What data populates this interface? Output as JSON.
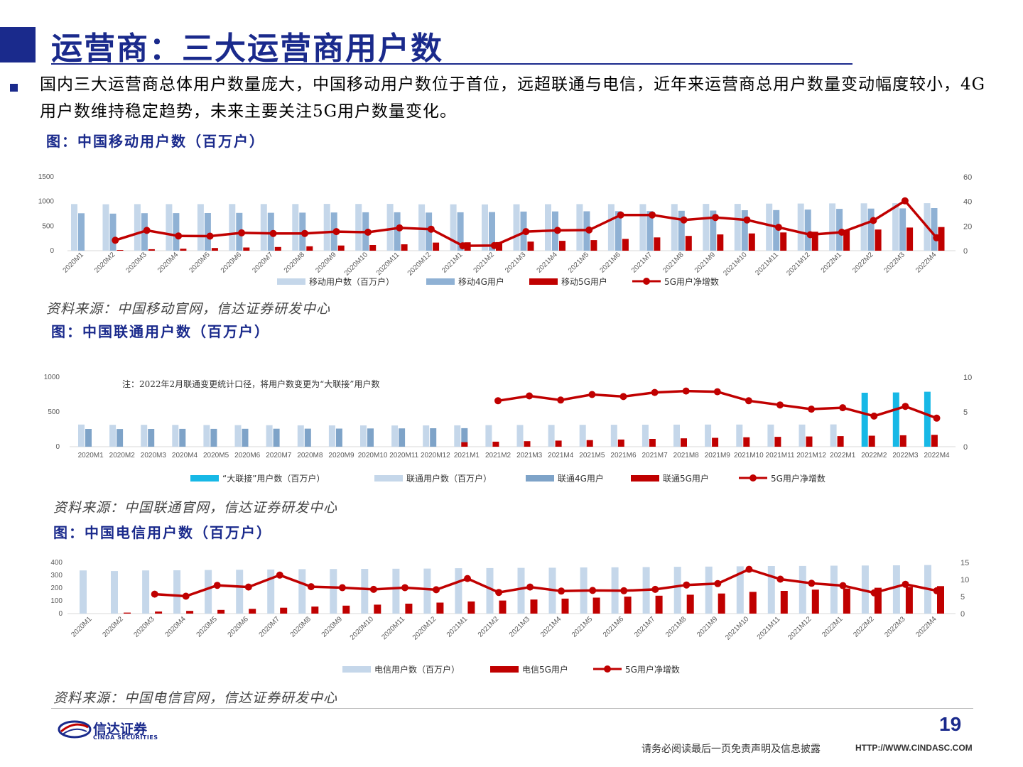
{
  "page": {
    "title": "运营商：三大运营商用户数",
    "intro": "国内三大运营商总体用户数量庞大，中国移动用户数位于首位，远超联通与电信，近年来运营商总用户数量变动幅度较小，4G用户数维持稳定趋势，未来主要关注5G用户数量变化。",
    "page_number": "19",
    "disclaimer": "请务必阅读最后一页免责声明及信息披露",
    "url": "HTTP://WWW.CINDASC.COM",
    "logo_cn": "信达证券",
    "logo_en": "CINDA SECURITIES",
    "colors": {
      "brand": "#1a2a8c",
      "light_bar": "#c5d7ea",
      "mid_bar": "#8fb1d4",
      "dark_bar": "#7ea3c8",
      "red": "#c00000",
      "cyan": "#17b8e6"
    }
  },
  "chart_data": [
    {
      "type": "bar",
      "title": "图：中国移动用户数（百万户）",
      "source": "资料来源：中国移动官网，信达证券研发中心",
      "categories": [
        "2020M1",
        "2020M2",
        "2020M3",
        "2020M4",
        "2020M5",
        "2020M6",
        "2020M7",
        "2020M8",
        "2020M9",
        "2020M10",
        "2020M11",
        "2020M12",
        "2021M1",
        "2021M2",
        "2021M3",
        "2021M4",
        "2021M5",
        "2021M6",
        "2021M7",
        "2021M8",
        "2021M9",
        "2021M10",
        "2021M11",
        "2021M12",
        "2022M1",
        "2022M2",
        "2022M3",
        "2022M4"
      ],
      "ylim_left": [
        0,
        1500
      ],
      "yticks_left": [
        "0",
        "500",
        "1000",
        "1500"
      ],
      "ylim_right": [
        0,
        60
      ],
      "yticks_right": [
        "0",
        "20",
        "40",
        "60"
      ],
      "series": [
        {
          "name": "移动用户数（百万户）",
          "kind": "bar",
          "axis": "left",
          "color": "#c5d7ea",
          "values": [
            948,
            943,
            946,
            946,
            946,
            947,
            948,
            948,
            950,
            949,
            950,
            942,
            942,
            940,
            943,
            945,
            946,
            946,
            946,
            947,
            950,
            951,
            956,
            957,
            961,
            962,
            965,
            965
          ]
        },
        {
          "name": "移动4G用户",
          "kind": "bar",
          "axis": "left",
          "color": "#8fb1d4",
          "values": [
            760,
            753,
            762,
            763,
            765,
            768,
            770,
            773,
            776,
            780,
            780,
            775,
            780,
            785,
            795,
            797,
            800,
            803,
            805,
            810,
            815,
            822,
            825,
            835,
            850,
            855,
            860,
            865
          ]
        },
        {
          "name": "移动5G用户",
          "kind": "bar",
          "axis": "left",
          "color": "#c00000",
          "values": [
            0,
            15,
            30,
            40,
            55,
            65,
            75,
            90,
            105,
            115,
            130,
            165,
            170,
            175,
            185,
            200,
            215,
            240,
            270,
            300,
            330,
            350,
            370,
            385,
            410,
            430,
            470,
            480
          ]
        },
        {
          "name": "5G用户净增数",
          "kind": "line",
          "axis": "right",
          "color": "#c00000",
          "values": [
            null,
            8.5,
            16.5,
            12,
            11.8,
            14.5,
            14,
            14,
            15.5,
            15,
            18.5,
            17.5,
            4,
            4.2,
            15.5,
            16.5,
            16.8,
            29,
            29,
            25,
            27,
            25,
            19,
            13,
            15,
            24.5,
            40.5,
            10.5
          ]
        }
      ],
      "cat_rotate": true
    },
    {
      "type": "bar",
      "title": "图：中国联通用户数（百万户）",
      "source": "资料来源：中国联通官网，信达证券研发中心",
      "annotation": "注：2022年2月联通变更统计口径，将用户数变更为“大联接”用户数",
      "categories": [
        "2020M1",
        "2020M2",
        "2020M3",
        "2020M4",
        "2020M5",
        "2020M6",
        "2020M7",
        "2020M8",
        "2020M9",
        "2020M10",
        "2020M11",
        "2020M12",
        "2021M1",
        "2021M2",
        "2021M3",
        "2021M4",
        "2021M5",
        "2021M6",
        "2021M7",
        "2021M8",
        "2021M9",
        "2021M10",
        "2021M11",
        "2021M12",
        "2022M1",
        "2022M2",
        "2022M3",
        "2022M4"
      ],
      "ylim_left": [
        0,
        1000
      ],
      "yticks_left": [
        "0",
        "500",
        "1000"
      ],
      "ylim_right": [
        0,
        10
      ],
      "yticks_right": [
        "0",
        "5",
        "10"
      ],
      "series": [
        {
          "name": "“大联接”用户数（百万户）",
          "kind": "bar",
          "axis": "left",
          "color": "#17b8e6",
          "values": [
            null,
            null,
            null,
            null,
            null,
            null,
            null,
            null,
            null,
            null,
            null,
            null,
            null,
            null,
            null,
            null,
            null,
            null,
            null,
            null,
            null,
            null,
            null,
            null,
            null,
            775,
            780,
            790
          ]
        },
        {
          "name": "联通用户数（百万户）",
          "kind": "bar",
          "axis": "left",
          "color": "#c5d7ea",
          "values": [
            318,
            314,
            314,
            313,
            311,
            310,
            309,
            307,
            306,
            306,
            305,
            306,
            307,
            310,
            312,
            313,
            314,
            315,
            316,
            317,
            318,
            318,
            318,
            318,
            320,
            null,
            null,
            null
          ]
        },
        {
          "name": "联通4G用户",
          "kind": "bar",
          "axis": "left",
          "color": "#7ea3c8",
          "values": [
            255,
            254,
            255,
            256,
            256,
            257,
            258,
            259,
            260,
            262,
            263,
            265,
            266,
            null,
            null,
            null,
            null,
            null,
            null,
            null,
            null,
            null,
            null,
            null,
            null,
            null,
            null,
            null
          ]
        },
        {
          "name": "联通5G用户",
          "kind": "bar",
          "axis": "left",
          "color": "#c00000",
          "values": [
            null,
            null,
            null,
            null,
            null,
            null,
            null,
            null,
            null,
            null,
            null,
            null,
            65,
            72,
            80,
            88,
            95,
            103,
            112,
            120,
            128,
            136,
            142,
            147,
            152,
            158,
            164,
            170
          ]
        },
        {
          "name": "5G用户净增数",
          "kind": "line",
          "axis": "right",
          "color": "#c00000",
          "values": [
            null,
            null,
            null,
            null,
            null,
            null,
            null,
            null,
            null,
            null,
            null,
            null,
            null,
            6.6,
            7.3,
            6.7,
            7.5,
            7.2,
            7.8,
            8.0,
            7.9,
            6.6,
            6.0,
            5.4,
            5.6,
            4.4,
            5.8,
            4.1
          ]
        }
      ],
      "cat_rotate": false
    },
    {
      "type": "bar",
      "title": "图：中国电信用户数（百万户）",
      "source": "资料来源：中国电信官网，信达证券研发中心",
      "categories": [
        "2020M1",
        "2020M2",
        "2020M3",
        "2020M4",
        "2020M5",
        "2020M6",
        "2020M7",
        "2020M8",
        "2020M9",
        "2020M10",
        "2020M11",
        "2020M12",
        "2021M1",
        "2021M2",
        "2021M3",
        "2021M4",
        "2021M5",
        "2021M6",
        "2021M7",
        "2021M8",
        "2021M9",
        "2021M10",
        "2021M11",
        "2021M12",
        "2022M1",
        "2022M2",
        "2022M3",
        "2022M4"
      ],
      "ylim_left": [
        0,
        400
      ],
      "yticks_left": [
        "0",
        "100",
        "200",
        "300",
        "400"
      ],
      "ylim_right": [
        0,
        15
      ],
      "yticks_right": [
        "0",
        "5",
        "10",
        "15"
      ],
      "series": [
        {
          "name": "电信用户数（百万户）",
          "kind": "bar",
          "axis": "left",
          "color": "#c5d7ea",
          "values": [
            338,
            333,
            338,
            339,
            341,
            343,
            345,
            348,
            349,
            350,
            351,
            352,
            355,
            356,
            358,
            359,
            361,
            362,
            364,
            366,
            368,
            370,
            372,
            373,
            375,
            376,
            378,
            380
          ]
        },
        {
          "name": "电信5G用户",
          "kind": "bar",
          "axis": "left",
          "color": "#c00000",
          "values": [
            null,
            8,
            16,
            21,
            29,
            37,
            46,
            55,
            62,
            70,
            78,
            86,
            95,
            102,
            110,
            117,
            125,
            133,
            140,
            148,
            157,
            170,
            178,
            187,
            196,
            202,
            209,
            215
          ]
        },
        {
          "name": "5G用户净增数",
          "kind": "line",
          "axis": "right",
          "color": "#c00000",
          "values": [
            null,
            null,
            5.7,
            5.1,
            8.3,
            7.8,
            11.3,
            7.9,
            7.6,
            7.1,
            7.6,
            7.0,
            10.3,
            6.2,
            7.8,
            6.6,
            6.8,
            6.7,
            7.1,
            8.4,
            8.8,
            13.0,
            10.1,
            8.9,
            8.2,
            6.1,
            8.6,
            6.7
          ]
        }
      ],
      "cat_rotate": true
    }
  ]
}
